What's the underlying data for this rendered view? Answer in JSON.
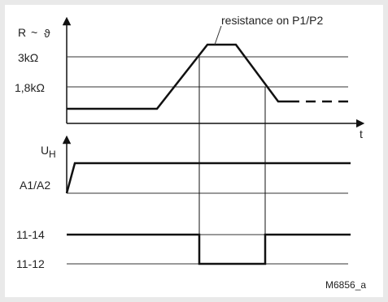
{
  "diagram": {
    "annotation": "resistance on P1/P2",
    "figure_id": "M6856_a",
    "resistance_panel": {
      "axis_label_r": "R",
      "axis_label_sym": "~",
      "axis_label_theta": "ϑ",
      "level_high": "3kΩ",
      "level_low": "1,8kΩ",
      "time_label": "t"
    },
    "supply_panel": {
      "label_u": "U",
      "label_u_sub": "H",
      "terminals": "A1/A2"
    },
    "contact_panel": {
      "contact_1": "11-14",
      "contact_2": "11-12"
    }
  }
}
